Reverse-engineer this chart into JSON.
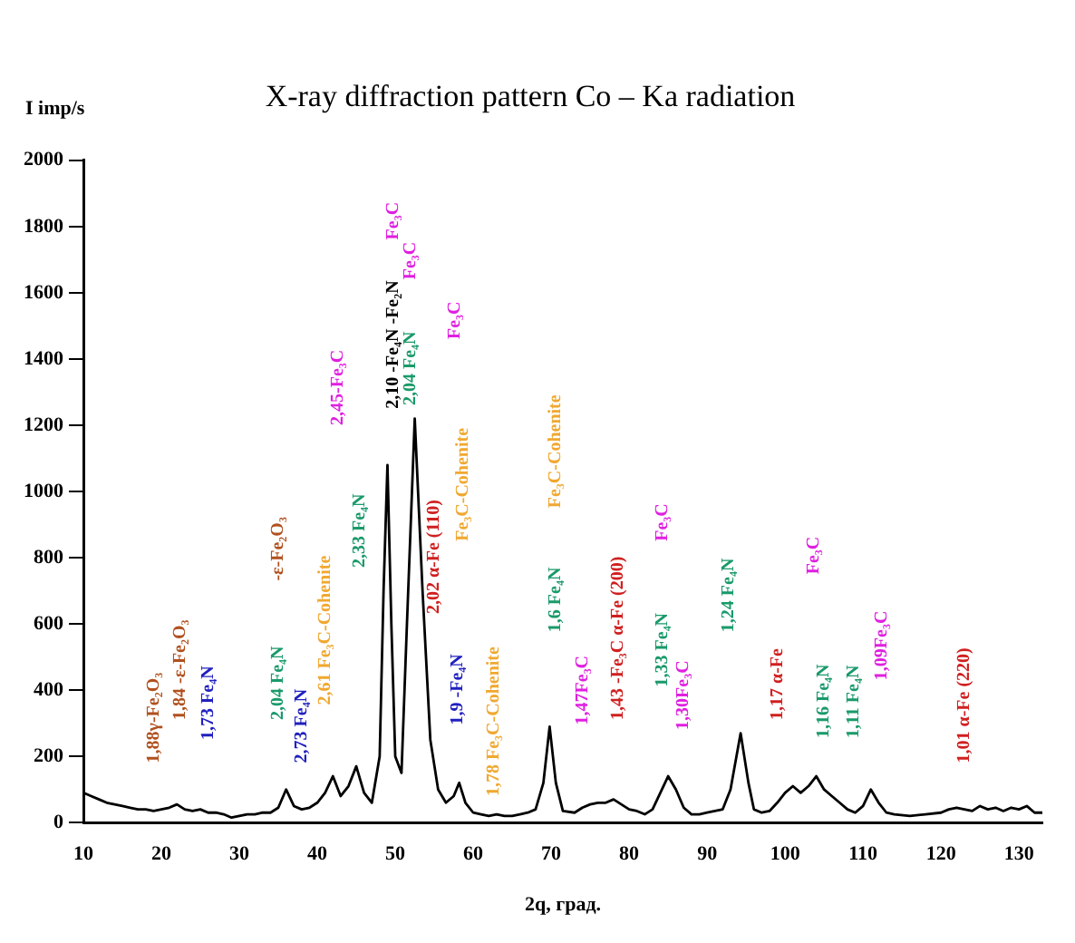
{
  "chart_data": {
    "type": "line",
    "title": "X-ray diffraction pattern Co – Ka radiation",
    "xlabel": "2q, град.",
    "ylabel": "I imp/s",
    "xlim": [
      10,
      133
    ],
    "xticks": [
      10,
      20,
      30,
      40,
      50,
      60,
      70,
      80,
      90,
      100,
      110,
      120,
      130
    ],
    "ylim": [
      0,
      2000
    ],
    "yticks": [
      0,
      200,
      400,
      600,
      800,
      1000,
      1200,
      1400,
      1600,
      1800,
      2000
    ],
    "grid": false,
    "legend": false,
    "marker": "none",
    "line_style": "solid",
    "series": [
      {
        "color": "#000000",
        "x": [
          10,
          11,
          12,
          13,
          14,
          15,
          16,
          17,
          18,
          19,
          20,
          21,
          22,
          23,
          24,
          25,
          26,
          27,
          28,
          29,
          30,
          31,
          32,
          33,
          34,
          35,
          36,
          37,
          38,
          39,
          40,
          41,
          42,
          43,
          44,
          45,
          46,
          47,
          48,
          48.5,
          49,
          49.5,
          50,
          50.8,
          51.5,
          52.5,
          53.5,
          54.5,
          55.5,
          56.5,
          57.5,
          58.2,
          59,
          60,
          61,
          62,
          63,
          64,
          65,
          66,
          67,
          68,
          69,
          69.8,
          70.6,
          71.5,
          73,
          74,
          75,
          76,
          77,
          78,
          79,
          80,
          81,
          82,
          83,
          84,
          85,
          86,
          87,
          88,
          89,
          90,
          91,
          92,
          93,
          94.3,
          95.3,
          96,
          97,
          98,
          99,
          100,
          101,
          102,
          103,
          104,
          105,
          106,
          107,
          108,
          109,
          110,
          111,
          112,
          113,
          114,
          116,
          118,
          120,
          121,
          122,
          123,
          124,
          125,
          126,
          127,
          128,
          129,
          130,
          131,
          132,
          133
        ],
        "values": [
          90,
          80,
          70,
          60,
          55,
          50,
          45,
          40,
          40,
          35,
          40,
          45,
          55,
          40,
          35,
          40,
          30,
          30,
          25,
          15,
          20,
          25,
          25,
          30,
          30,
          45,
          100,
          50,
          40,
          45,
          60,
          90,
          140,
          80,
          110,
          170,
          90,
          60,
          200,
          700,
          1080,
          600,
          200,
          150,
          600,
          1220,
          700,
          250,
          100,
          60,
          80,
          120,
          60,
          30,
          25,
          20,
          25,
          20,
          20,
          25,
          30,
          40,
          120,
          290,
          120,
          35,
          30,
          45,
          55,
          60,
          60,
          70,
          55,
          40,
          35,
          25,
          40,
          90,
          140,
          100,
          45,
          25,
          25,
          30,
          35,
          40,
          100,
          270,
          120,
          40,
          30,
          35,
          60,
          90,
          110,
          90,
          110,
          140,
          100,
          80,
          60,
          40,
          30,
          50,
          100,
          60,
          30,
          25,
          20,
          25,
          30,
          40,
          45,
          40,
          35,
          50,
          40,
          45,
          35,
          45,
          40,
          50,
          30,
          30
        ]
      }
    ],
    "annotations": [
      "1,88γ-Fe₂O₃",
      "1,84 -ε-Fe₂O₃",
      "1,73 Fe₄N",
      "2,04 Fe₄N",
      "-ε-Fe₂O₃",
      "2,73 Fe₄N",
      "2,61 Fe₃C-Cohenite",
      "2,45-Fe₃C",
      "2,33 Fe₄N",
      "2,10 -Fe₄N -Fe₂N",
      "Fe₃C",
      "2,04 Fe₄N",
      "Fe₃C",
      "2,02 α-Fe (110)",
      "Fe₃C",
      "1,9 -Fe₄N",
      "Fe₃C-Cohenite",
      "1,78 Fe₃C-Cohenite",
      "1,6 Fe₄N",
      "Fe₃C-Cohenite",
      "1,47Fe₃C",
      "1,43 -Fe₃C α-Fe (200)",
      "1,33 Fe₄N",
      "Fe₃C",
      "1,30Fe₃C",
      "1,24 Fe₄N",
      "1,17 α-Fe",
      "Fe₃C",
      "1,16 Fe₄N",
      "1,11 Fe₄N",
      "1,09Fe₃C",
      "1,01 α-Fe (220)"
    ]
  }
}
